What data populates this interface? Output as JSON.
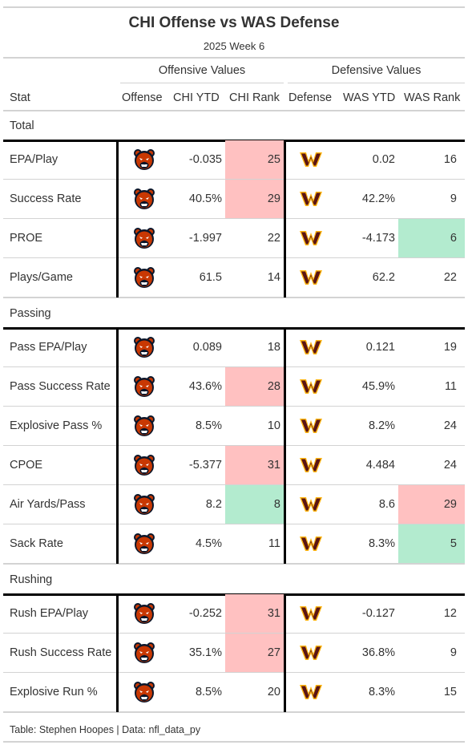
{
  "header": {
    "title": "CHI Offense vs WAS Defense",
    "subtitle": "2025 Week 6",
    "spanner_offense": "Offensive Values",
    "spanner_defense": "Defensive Values"
  },
  "columns": {
    "stat": "Stat",
    "offense": "Offense",
    "off_ytd": "CHI YTD",
    "off_rank": "CHI Rank",
    "defense": "Defense",
    "def_ytd": "WAS YTD",
    "def_rank": "WAS Rank"
  },
  "colors": {
    "bad": "#ffc1c1",
    "good": "#b3ebcf",
    "bears_orange": "#c83803",
    "bears_navy": "#0b162a",
    "commanders_burgundy": "#5a1414",
    "commanders_gold": "#ffb612"
  },
  "icons": {
    "offense_logo": "bears-logo-icon",
    "defense_logo": "commanders-logo-icon"
  },
  "groups": [
    {
      "label": "Total",
      "rows": [
        {
          "stat": "EPA/Play",
          "off_ytd": "-0.035",
          "off_rank": "25",
          "off_hl": "bad",
          "def_ytd": "0.02",
          "def_rank": "16",
          "def_hl": ""
        },
        {
          "stat": "Success Rate",
          "off_ytd": "40.5%",
          "off_rank": "29",
          "off_hl": "bad",
          "def_ytd": "42.2%",
          "def_rank": "9",
          "def_hl": ""
        },
        {
          "stat": "PROE",
          "off_ytd": "-1.997",
          "off_rank": "22",
          "off_hl": "",
          "def_ytd": "-4.173",
          "def_rank": "6",
          "def_hl": "good"
        },
        {
          "stat": "Plays/Game",
          "off_ytd": "61.5",
          "off_rank": "14",
          "off_hl": "",
          "def_ytd": "62.2",
          "def_rank": "22",
          "def_hl": ""
        }
      ]
    },
    {
      "label": "Passing",
      "rows": [
        {
          "stat": "Pass EPA/Play",
          "off_ytd": "0.089",
          "off_rank": "18",
          "off_hl": "",
          "def_ytd": "0.121",
          "def_rank": "19",
          "def_hl": ""
        },
        {
          "stat": "Pass Success Rate",
          "off_ytd": "43.6%",
          "off_rank": "28",
          "off_hl": "bad",
          "def_ytd": "45.9%",
          "def_rank": "11",
          "def_hl": ""
        },
        {
          "stat": "Explosive Pass %",
          "off_ytd": "8.5%",
          "off_rank": "10",
          "off_hl": "",
          "def_ytd": "8.2%",
          "def_rank": "24",
          "def_hl": ""
        },
        {
          "stat": "CPOE",
          "off_ytd": "-5.377",
          "off_rank": "31",
          "off_hl": "bad",
          "def_ytd": "4.484",
          "def_rank": "24",
          "def_hl": ""
        },
        {
          "stat": "Air Yards/Pass",
          "off_ytd": "8.2",
          "off_rank": "8",
          "off_hl": "good",
          "def_ytd": "8.6",
          "def_rank": "29",
          "def_hl": "bad"
        },
        {
          "stat": "Sack Rate",
          "off_ytd": "4.5%",
          "off_rank": "11",
          "off_hl": "",
          "def_ytd": "8.3%",
          "def_rank": "5",
          "def_hl": "good"
        }
      ]
    },
    {
      "label": "Rushing",
      "rows": [
        {
          "stat": "Rush EPA/Play",
          "off_ytd": "-0.252",
          "off_rank": "31",
          "off_hl": "bad",
          "def_ytd": "-0.127",
          "def_rank": "12",
          "def_hl": ""
        },
        {
          "stat": "Rush Success Rate",
          "off_ytd": "35.1%",
          "off_rank": "27",
          "off_hl": "bad",
          "def_ytd": "36.8%",
          "def_rank": "9",
          "def_hl": ""
        },
        {
          "stat": "Explosive Run %",
          "off_ytd": "8.5%",
          "off_rank": "20",
          "off_hl": "",
          "def_ytd": "8.3%",
          "def_rank": "15",
          "def_hl": ""
        }
      ]
    }
  ],
  "footer": "Table: Stephen Hoopes | Data: nfl_data_py"
}
